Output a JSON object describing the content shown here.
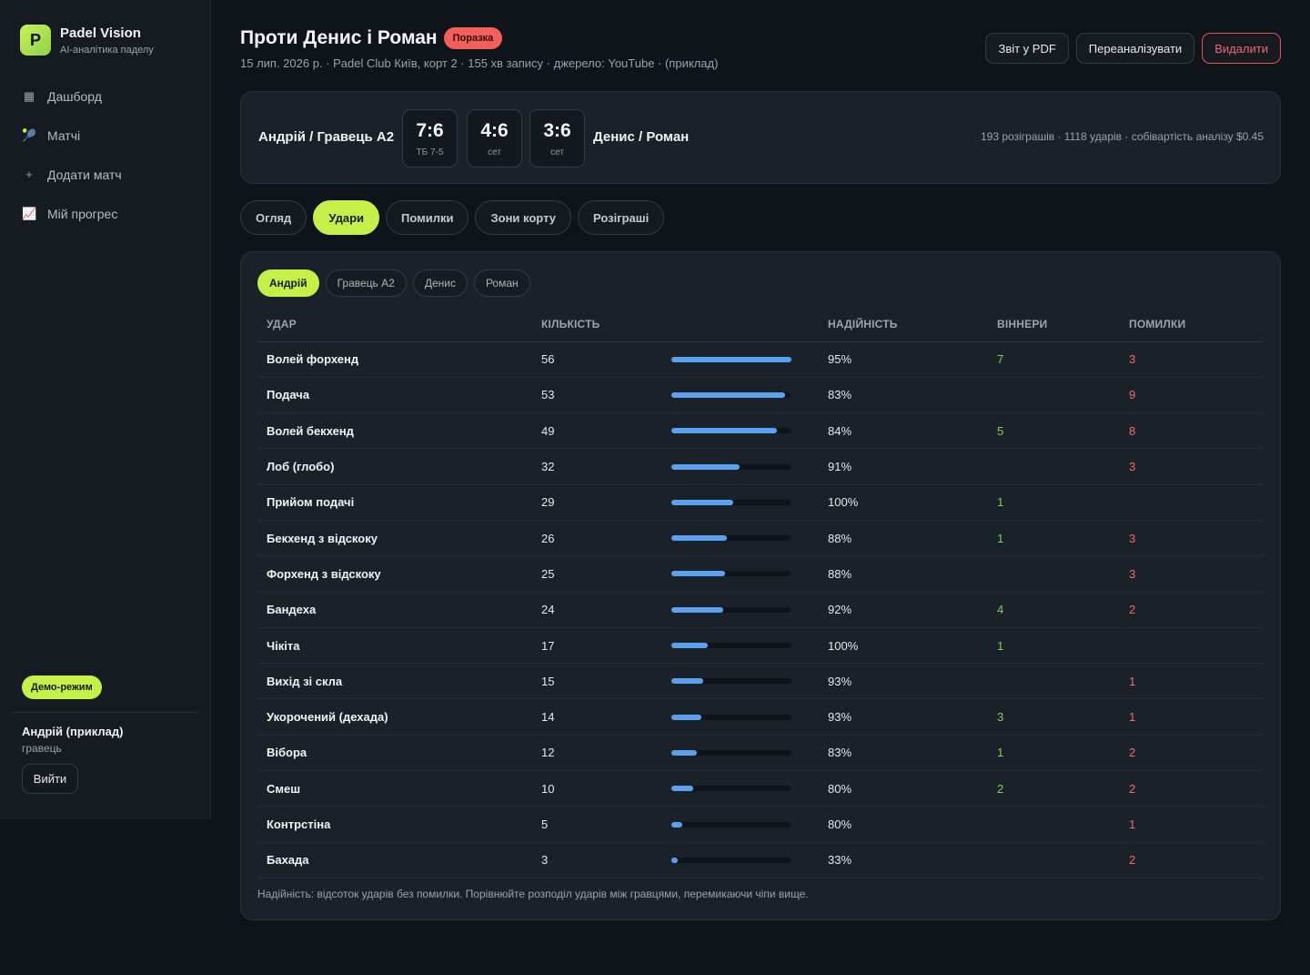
{
  "brand": {
    "logo_letter": "P",
    "name": "Padel Vision",
    "subtitle": "AI-аналітика паделу"
  },
  "nav": [
    {
      "icon": "▦",
      "icon_name": "dashboard-icon",
      "label": "Дашборд"
    },
    {
      "icon": "🎾",
      "icon_name": "racket-icon",
      "label": "Матчі"
    },
    {
      "icon": "+",
      "icon_name": "plus-icon",
      "label": "Додати матч"
    },
    {
      "icon": "📈",
      "icon_name": "chart-up-icon",
      "label": "Мій прогрес"
    }
  ],
  "sidebar_footer": {
    "demo_badge": "Демо-режим",
    "user_name": "Андрій (приклад)",
    "user_role": "гравець",
    "logout": "Вийти"
  },
  "header": {
    "title": "Проти Денис і Роман",
    "result_badge": "Поразка",
    "subtitle": "15 лип. 2026 р. · Padel Club Київ, корт 2 · 155 хв запису · джерело: YouTube · (приклад)",
    "actions": {
      "pdf": "Звіт у PDF",
      "reanalyze": "Переаналізувати",
      "delete": "Видалити"
    }
  },
  "score": {
    "team_a": "Андрій / Гравець А2",
    "team_b": "Денис / Роман",
    "sets": [
      {
        "score": "7:6",
        "note": "ТБ 7-5",
        "won": true
      },
      {
        "score": "4:6",
        "note": "сет",
        "won": false
      },
      {
        "score": "3:6",
        "note": "сет",
        "won": false
      }
    ],
    "stats": "193 розіграшів · 1118 ударів · собівартість аналізу $0.45"
  },
  "tabs": [
    "Огляд",
    "Удари",
    "Помилки",
    "Зони корту",
    "Розіграші"
  ],
  "active_tab": 1,
  "player_chips": [
    "Андрій",
    "Гравець А2",
    "Денис",
    "Роман"
  ],
  "active_chip": 0,
  "table": {
    "headers": {
      "shot": "УДАР",
      "count": "КІЛЬКІСТЬ",
      "reliability": "НАДІЙНІСТЬ",
      "winners": "ВІННЕРИ",
      "errors": "ПОМИЛКИ"
    },
    "bar_color": "#5aa2ef",
    "rows": [
      {
        "shot": "Волей форхенд",
        "count": 56,
        "reliability": "95%",
        "winners": "7",
        "errors": "3"
      },
      {
        "shot": "Подача",
        "count": 53,
        "reliability": "83%",
        "winners": "",
        "errors": "9"
      },
      {
        "shot": "Волей бекхенд",
        "count": 49,
        "reliability": "84%",
        "winners": "5",
        "errors": "8"
      },
      {
        "shot": "Лоб (глобо)",
        "count": 32,
        "reliability": "91%",
        "winners": "",
        "errors": "3"
      },
      {
        "shot": "Прийом подачі",
        "count": 29,
        "reliability": "100%",
        "winners": "1",
        "errors": ""
      },
      {
        "shot": "Бекхенд з відскоку",
        "count": 26,
        "reliability": "88%",
        "winners": "1",
        "errors": "3"
      },
      {
        "shot": "Форхенд з відскоку",
        "count": 25,
        "reliability": "88%",
        "winners": "",
        "errors": "3"
      },
      {
        "shot": "Бандеха",
        "count": 24,
        "reliability": "92%",
        "winners": "4",
        "errors": "2"
      },
      {
        "shot": "Чікіта",
        "count": 17,
        "reliability": "100%",
        "winners": "1",
        "errors": ""
      },
      {
        "shot": "Вихід зі скла",
        "count": 15,
        "reliability": "93%",
        "winners": "",
        "errors": "1"
      },
      {
        "shot": "Укорочений (дехада)",
        "count": 14,
        "reliability": "93%",
        "winners": "3",
        "errors": "1"
      },
      {
        "shot": "Вібора",
        "count": 12,
        "reliability": "83%",
        "winners": "1",
        "errors": "2"
      },
      {
        "shot": "Смеш",
        "count": 10,
        "reliability": "80%",
        "winners": "2",
        "errors": "2"
      },
      {
        "shot": "Контрстіна",
        "count": 5,
        "reliability": "80%",
        "winners": "",
        "errors": "1"
      },
      {
        "shot": "Бахада",
        "count": 3,
        "reliability": "33%",
        "winners": "",
        "errors": "2"
      }
    ]
  },
  "footnote": "Надійність: відсоток ударів без помилки. Порівнюйте розподіл ударів між гравцями, перемикаючи чіпи вище."
}
